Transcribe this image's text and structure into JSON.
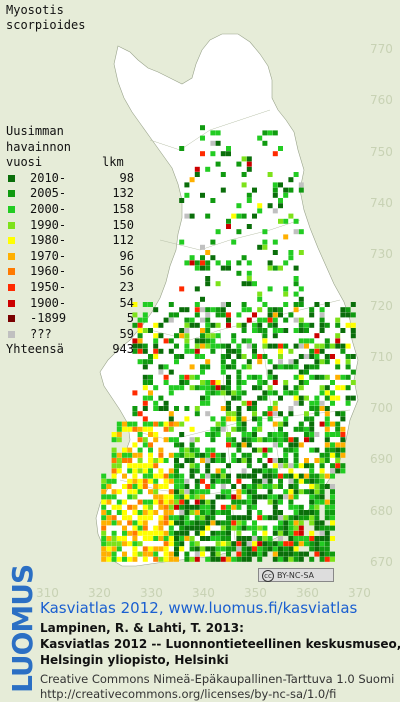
{
  "title_line1": "Myosotis",
  "title_line2": "scorpioides",
  "legend": {
    "header1": "Uusimman",
    "header2": "havainnon",
    "header3_left": "vuosi",
    "header3_right": "lkm",
    "items": [
      {
        "label": "2010-",
        "count": "98",
        "color": "#0a6e0a"
      },
      {
        "label": "2005-",
        "count": "132",
        "color": "#109a10"
      },
      {
        "label": "2000-",
        "count": "158",
        "color": "#22cc22"
      },
      {
        "label": "1990-",
        "count": "150",
        "color": "#7de21a"
      },
      {
        "label": "1980-",
        "count": "112",
        "color": "#ffff00"
      },
      {
        "label": "1970-",
        "count": "96",
        "color": "#ffb000"
      },
      {
        "label": "1960-",
        "count": "56",
        "color": "#ff7a00"
      },
      {
        "label": "1950-",
        "count": "23",
        "color": "#ff2a00"
      },
      {
        "label": "1900-",
        "count": "54",
        "color": "#cc0000"
      },
      {
        "label": "-1899",
        "count": "5",
        "color": "#7a0000"
      },
      {
        "label": "???",
        "count": "59",
        "color": "#c0c0c0"
      }
    ],
    "total_label": "Yhteensä",
    "total_count": "943"
  },
  "axis_right": [
    "770",
    "760",
    "750",
    "740",
    "730",
    "720",
    "710",
    "700",
    "690",
    "680",
    "670"
  ],
  "axis_bottom": [
    "310",
    "320",
    "330",
    "340",
    "350",
    "360",
    "370"
  ],
  "license_badge": "BY-NC-SA",
  "license_badge_cc": "cc",
  "brand": "LUOMUS",
  "atlas_title": "Kasviatlas 2012, www.luomus.fi/kasviatlas",
  "reference_line1": "Lampinen, R. & Lahti, T. 2013:",
  "reference_line2": "Kasviatlas 2012 -- Luonnontieteellinen keskusmuseo,",
  "reference_line3": "Helsingin yliopisto, Helsinki",
  "license_line1": "Creative Commons Nimeä-Epäkaupallinen-Tarttuva 1.0 Suomi",
  "license_line2": "http://creativecommons.org/licenses/by-nc-sa/1.0/fi"
}
